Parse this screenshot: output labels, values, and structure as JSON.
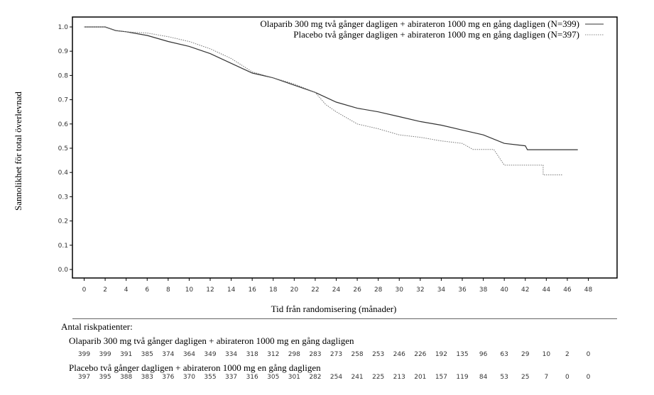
{
  "chart_data": {
    "type": "line",
    "title": "",
    "xlabel": "Tid från randomisering (månader)",
    "ylabel": "Sannolikhet för total överlevnad",
    "xlim": [
      0,
      48
    ],
    "ylim": [
      0.0,
      1.0
    ],
    "x_ticks": [
      "0",
      "2",
      "4",
      "6",
      "8",
      "10",
      "12",
      "14",
      "16",
      "18",
      "20",
      "22",
      "24",
      "26",
      "28",
      "30",
      "32",
      "34",
      "36",
      "38",
      "40",
      "42",
      "44",
      "46",
      "48"
    ],
    "y_ticks": [
      "0.0",
      "0.1",
      "0.2",
      "0.3",
      "0.4",
      "0.5",
      "0.6",
      "0.7",
      "0.8",
      "0.9",
      "1.0"
    ],
    "grid": false,
    "legend_position": "top-right",
    "series": [
      {
        "name": "Olaparib 300 mg två gånger dagligen + abirateron 1000 mg en gång dagligen (N=399)",
        "style": "solid",
        "color": "#333333",
        "points": [
          [
            0,
            1.0
          ],
          [
            2,
            1.0
          ],
          [
            3,
            0.985
          ],
          [
            4,
            0.98
          ],
          [
            6,
            0.965
          ],
          [
            8,
            0.94
          ],
          [
            10,
            0.92
          ],
          [
            12,
            0.89
          ],
          [
            14,
            0.85
          ],
          [
            16,
            0.81
          ],
          [
            18,
            0.79
          ],
          [
            20,
            0.76
          ],
          [
            22,
            0.73
          ],
          [
            24,
            0.69
          ],
          [
            26,
            0.665
          ],
          [
            28,
            0.65
          ],
          [
            30,
            0.63
          ],
          [
            32,
            0.61
          ],
          [
            34,
            0.595
          ],
          [
            36,
            0.575
          ],
          [
            38,
            0.555
          ],
          [
            40,
            0.52
          ],
          [
            42,
            0.51
          ],
          [
            42.2,
            0.494
          ],
          [
            47,
            0.494
          ]
        ]
      },
      {
        "name": "Placebo två gånger dagligen + abirateron 1000 mg en gång dagligen (N=397)",
        "style": "dotted",
        "color": "#777777",
        "points": [
          [
            0,
            1.0
          ],
          [
            2,
            1.0
          ],
          [
            3,
            0.985
          ],
          [
            4,
            0.98
          ],
          [
            6,
            0.975
          ],
          [
            8,
            0.96
          ],
          [
            10,
            0.94
          ],
          [
            12,
            0.91
          ],
          [
            14,
            0.87
          ],
          [
            16,
            0.815
          ],
          [
            18,
            0.79
          ],
          [
            20,
            0.765
          ],
          [
            22,
            0.73
          ],
          [
            23,
            0.68
          ],
          [
            24,
            0.65
          ],
          [
            26,
            0.6
          ],
          [
            28,
            0.58
          ],
          [
            30,
            0.555
          ],
          [
            32,
            0.545
          ],
          [
            34,
            0.53
          ],
          [
            36,
            0.52
          ],
          [
            37,
            0.495
          ],
          [
            39,
            0.495
          ],
          [
            40,
            0.43
          ],
          [
            43.7,
            0.43
          ],
          [
            43.7,
            0.39
          ],
          [
            45.5,
            0.39
          ]
        ]
      }
    ],
    "risk_table": {
      "title": "Antal riskpatienter:",
      "times": [
        0,
        2,
        4,
        6,
        8,
        10,
        12,
        14,
        16,
        18,
        20,
        22,
        24,
        26,
        28,
        30,
        32,
        34,
        36,
        38,
        40,
        42,
        44,
        46,
        48
      ],
      "rows": [
        {
          "label": "Olaparib 300 mg två gånger dagligen + abirateron 1000 mg en gång dagligen",
          "values": [
            "399",
            "399",
            "391",
            "385",
            "374",
            "364",
            "349",
            "334",
            "318",
            "312",
            "298",
            "283",
            "273",
            "258",
            "253",
            "246",
            "226",
            "192",
            "135",
            "96",
            "63",
            "29",
            "10",
            "2",
            "0"
          ]
        },
        {
          "label": "Placebo två gånger dagligen + abirateron 1000 mg en gång dagligen",
          "values": [
            "397",
            "395",
            "388",
            "383",
            "376",
            "370",
            "355",
            "337",
            "316",
            "305",
            "301",
            "282",
            "254",
            "241",
            "225",
            "213",
            "201",
            "157",
            "119",
            "84",
            "53",
            "25",
            "7",
            "0",
            "0"
          ]
        }
      ]
    }
  }
}
